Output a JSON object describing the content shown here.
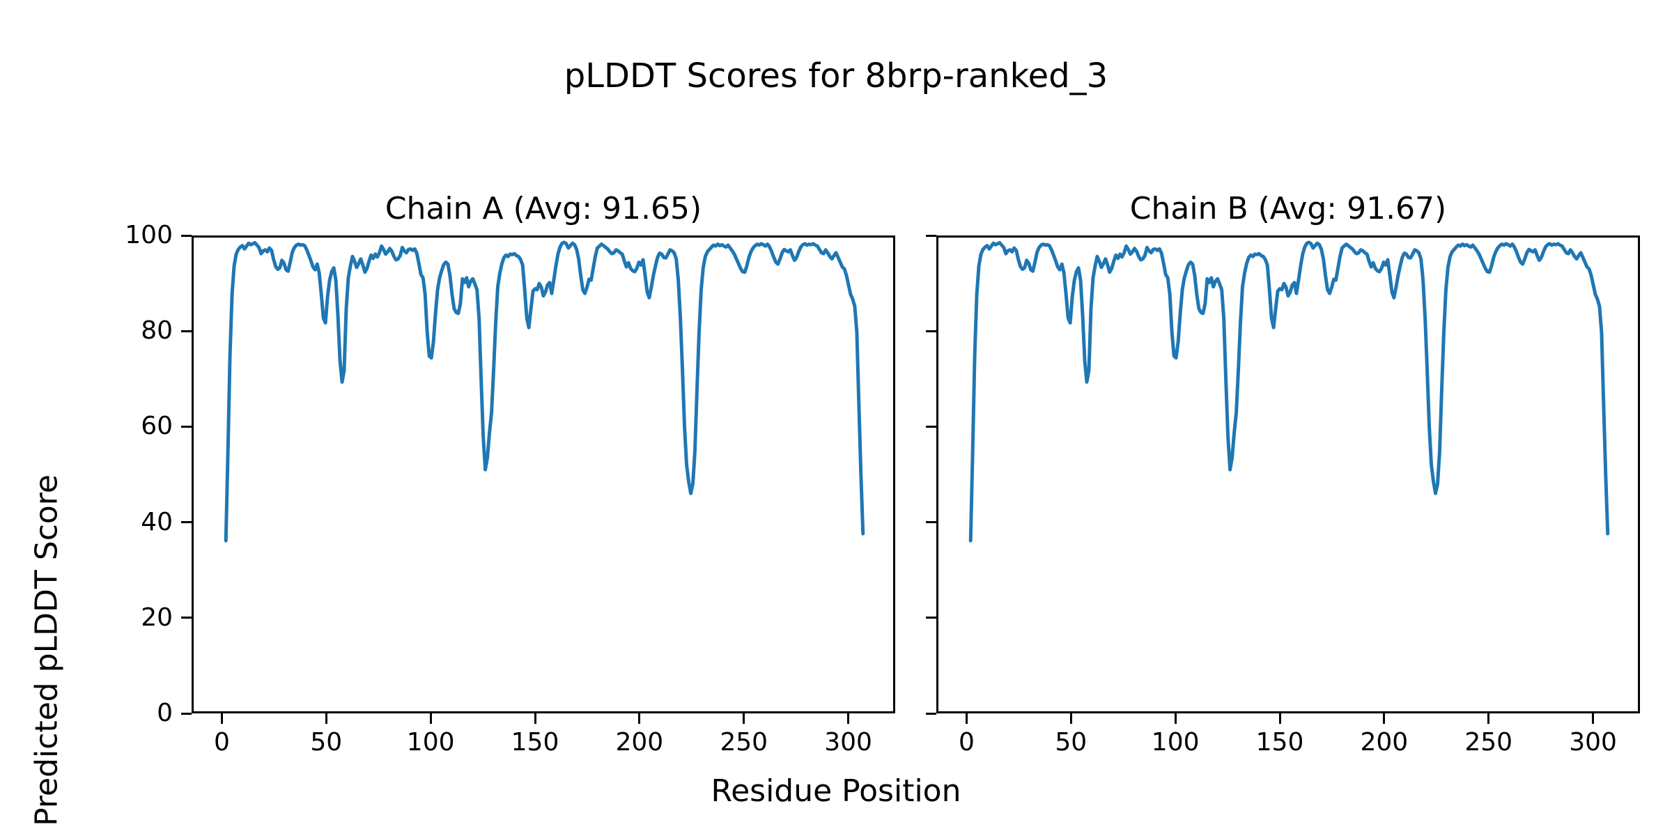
{
  "figure": {
    "suptitle": "pLDDT Scores for 8brp-ranked_3",
    "xlabel": "Residue Position",
    "ylabel": "Predicted pLDDT Score",
    "line_color": "#1f77b4",
    "background_color": "#ffffff",
    "spine_color": "#000000"
  },
  "chart_data": [
    {
      "type": "line",
      "title": "Chain A (Avg: 91.65)",
      "avg": 91.65,
      "legend": "none",
      "grid": false,
      "xlim": [
        -14.5,
        322.5
      ],
      "ylim": [
        0,
        100
      ],
      "xticks": [
        0,
        50,
        100,
        150,
        200,
        250,
        300
      ],
      "yticks": [
        0,
        20,
        40,
        60,
        80,
        100
      ],
      "show_ytick_labels": true,
      "x_start": 1,
      "x_step": 1,
      "values": [
        36,
        55,
        75,
        88,
        94,
        96.5,
        97.5,
        98,
        98.3,
        97.6,
        98.2,
        98.8,
        98.5,
        98.7,
        98.9,
        98.4,
        97.9,
        96.6,
        97.2,
        97.4,
        97,
        97.8,
        97.3,
        95.4,
        93.9,
        93.3,
        93.6,
        95.2,
        94.6,
        93.2,
        92.9,
        94.8,
        96.9,
        97.9,
        98.4,
        98.6,
        98.4,
        98.5,
        98.3,
        97.4,
        96.3,
        95.1,
        93.8,
        93.2,
        94.4,
        92.5,
        88,
        83,
        82,
        87.5,
        91,
        92.8,
        93.6,
        91,
        83.5,
        74,
        69.5,
        72,
        85,
        91.5,
        94,
        96,
        95,
        93.7,
        94.5,
        95.5,
        94.2,
        92.7,
        93.5,
        95,
        96.3,
        95.6,
        96.5,
        95.9,
        96.8,
        98.2,
        97.5,
        96.5,
        97,
        97.7,
        97.1,
        96,
        95.3,
        95.5,
        96.2,
        97.9,
        97.2,
        96.8,
        97.5,
        97.6,
        97.3,
        97.6,
        96.7,
        94.5,
        92.2,
        91.5,
        88,
        80,
        75,
        74.6,
        78,
        84,
        89,
        91.5,
        93,
        94.3,
        94.8,
        94.4,
        92,
        88,
        85,
        84.2,
        84,
        86,
        91.3,
        90.5,
        91.5,
        89.6,
        90.8,
        91.3,
        90.2,
        89,
        83,
        70,
        58,
        51,
        53.5,
        58.8,
        63,
        72,
        82,
        89.6,
        92.5,
        94.5,
        95.8,
        96.3,
        96,
        96.5,
        96.4,
        96.6,
        96.2,
        96,
        95.4,
        94.2,
        89,
        83,
        81,
        85,
        88.7,
        89.2,
        89,
        90.3,
        89.5,
        87.7,
        88.5,
        90,
        90.5,
        88.2,
        91,
        94,
        96.5,
        98,
        98.8,
        99,
        98.7,
        97.8,
        98.3,
        98.8,
        98.5,
        97.5,
        95.5,
        92,
        89,
        88.2,
        89.5,
        91.2,
        91,
        93.5,
        96,
        97.8,
        98.2,
        98.6,
        98.3,
        97.9,
        97.6,
        97,
        96.6,
        96.8,
        97.4,
        97.2,
        96.8,
        96.5,
        95,
        93.8,
        94.7,
        93.5,
        93,
        92.8,
        93.5,
        94.8,
        94.2,
        95.3,
        92,
        88.5,
        87.3,
        89.5,
        92,
        94,
        95.8,
        96.7,
        96.5,
        95.8,
        95.7,
        96.5,
        97.4,
        97.2,
        96.8,
        95.5,
        91,
        83,
        72,
        60,
        52,
        48.5,
        46,
        48,
        55,
        68,
        80,
        89,
        93.7,
        96,
        97,
        97.5,
        98,
        98.4,
        98.2,
        98.6,
        98.3,
        98.5,
        98.2,
        98,
        98.4,
        97.8,
        97.2,
        96.5,
        95.5,
        94.5,
        93.5,
        92.8,
        92.7,
        94,
        95.8,
        97,
        97.8,
        98.3,
        98.6,
        98.4,
        98.7,
        98.5,
        98.2,
        98.6,
        98,
        97,
        95.8,
        94.8,
        94.4,
        95.5,
        96.8,
        97.5,
        97.2,
        97,
        97.4,
        96.2,
        95.2,
        95.8,
        97,
        98,
        98.5,
        98.7,
        98.4,
        98.6,
        98.5,
        98.7,
        98.4,
        98.2,
        97.5,
        96.8,
        96.6,
        97.4,
        96.8,
        96,
        95.5,
        96.2,
        96.8,
        95.8,
        94.8,
        93.8,
        93.4,
        92,
        90,
        88,
        87,
        85.5,
        80,
        65,
        50,
        37.5
      ]
    },
    {
      "type": "line",
      "title": "Chain B (Avg: 91.67)",
      "avg": 91.67,
      "legend": "none",
      "grid": false,
      "xlim": [
        -14.5,
        322.5
      ],
      "ylim": [
        0,
        100
      ],
      "xticks": [
        0,
        50,
        100,
        150,
        200,
        250,
        300
      ],
      "yticks": [
        0,
        20,
        40,
        60,
        80,
        100
      ],
      "show_ytick_labels": false,
      "x_start": 1,
      "x_step": 1,
      "values": [
        36,
        55,
        75,
        88,
        94,
        96.5,
        97.5,
        98,
        98.3,
        97.6,
        98.2,
        98.8,
        98.5,
        98.7,
        98.9,
        98.4,
        97.9,
        96.6,
        97.2,
        97.4,
        97,
        97.8,
        97.3,
        95.4,
        93.9,
        93.3,
        93.6,
        95.2,
        94.6,
        93.2,
        92.9,
        94.8,
        96.9,
        97.9,
        98.4,
        98.6,
        98.4,
        98.5,
        98.3,
        97.4,
        96.3,
        95.1,
        93.8,
        93.2,
        94.4,
        92.5,
        88,
        83,
        82,
        87.5,
        91,
        92.8,
        93.6,
        91,
        83.5,
        74,
        69.5,
        72,
        85,
        91.5,
        94,
        96,
        95,
        93.7,
        94.5,
        95.5,
        94.2,
        92.7,
        93.5,
        95,
        96.3,
        95.6,
        96.5,
        95.9,
        96.8,
        98.2,
        97.5,
        96.5,
        97,
        97.7,
        97.1,
        96,
        95.3,
        95.5,
        96.2,
        97.9,
        97.2,
        96.8,
        97.5,
        97.6,
        97.3,
        97.6,
        96.7,
        94.5,
        92.2,
        91.5,
        88,
        80,
        75,
        74.6,
        78,
        84,
        89,
        91.5,
        93,
        94.3,
        94.8,
        94.4,
        92,
        88,
        85,
        84.2,
        84,
        86,
        91.3,
        90.5,
        91.5,
        89.6,
        90.8,
        91.3,
        90.2,
        89,
        83,
        70,
        58,
        51,
        53.5,
        58.8,
        63,
        72,
        82,
        89.6,
        92.5,
        94.5,
        95.8,
        96.3,
        96,
        96.5,
        96.4,
        96.6,
        96.2,
        96,
        95.4,
        94.2,
        89,
        83,
        81,
        85,
        88.7,
        89.2,
        89,
        90.3,
        89.5,
        87.7,
        88.5,
        90,
        90.5,
        88.2,
        91,
        94,
        96.5,
        98,
        98.8,
        99,
        98.7,
        97.8,
        98.3,
        98.8,
        98.5,
        97.5,
        95.5,
        92,
        89,
        88.2,
        89.5,
        91.2,
        91,
        93.5,
        96,
        97.8,
        98.2,
        98.6,
        98.3,
        97.9,
        97.6,
        97,
        96.6,
        96.8,
        97.4,
        97.2,
        96.8,
        96.5,
        95,
        93.8,
        94.7,
        93.5,
        93,
        92.8,
        93.5,
        94.8,
        94.2,
        95.3,
        92,
        88.5,
        87.3,
        89.5,
        92,
        94,
        95.8,
        96.7,
        96.5,
        95.8,
        95.7,
        96.5,
        97.4,
        97.2,
        96.8,
        95.5,
        91,
        83,
        72,
        60,
        52,
        48.5,
        46,
        48,
        55,
        68,
        80,
        89,
        93.7,
        96,
        97,
        97.5,
        98,
        98.4,
        98.2,
        98.6,
        98.3,
        98.5,
        98.2,
        98,
        98.4,
        97.8,
        97.2,
        96.5,
        95.5,
        94.5,
        93.5,
        92.8,
        92.7,
        94,
        95.8,
        97,
        97.8,
        98.3,
        98.6,
        98.4,
        98.7,
        98.5,
        98.2,
        98.6,
        98,
        97,
        95.8,
        94.8,
        94.4,
        95.5,
        96.8,
        97.5,
        97.2,
        97,
        97.4,
        96.2,
        95.2,
        95.8,
        97,
        98,
        98.5,
        98.7,
        98.4,
        98.6,
        98.5,
        98.7,
        98.4,
        98.2,
        97.5,
        96.8,
        96.6,
        97.4,
        96.8,
        96,
        95.5,
        96.2,
        96.8,
        95.8,
        94.8,
        93.8,
        93.4,
        92,
        90,
        88,
        87,
        85.5,
        80,
        65,
        50,
        37.5
      ]
    }
  ]
}
